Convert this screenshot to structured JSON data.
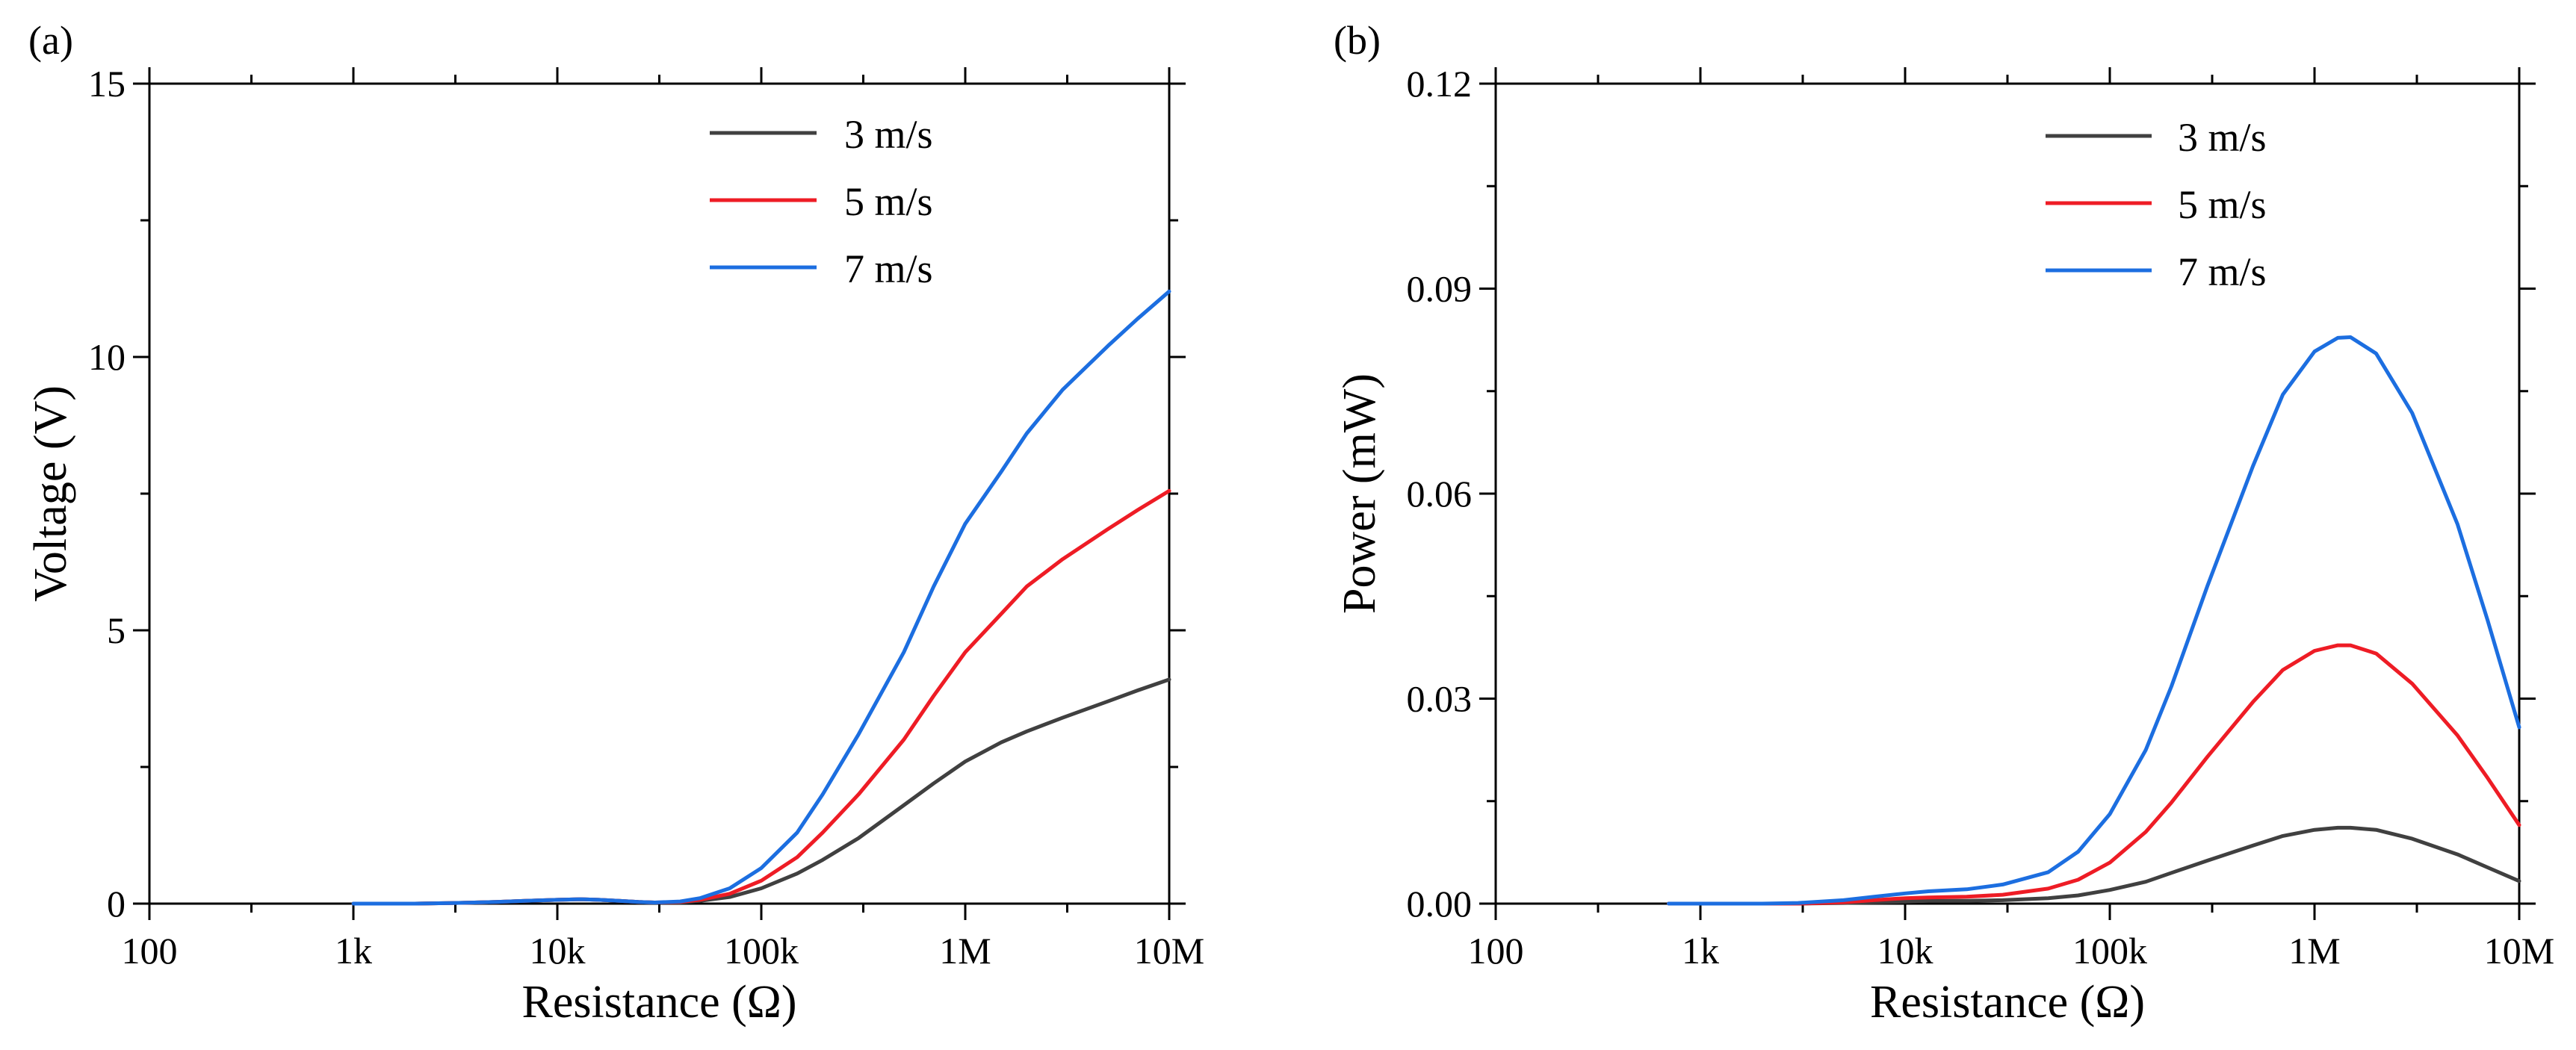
{
  "chart_data": [
    {
      "panel_label": "(a)",
      "type": "line",
      "xlabel": "Resistance (Ω)",
      "ylabel": "Voltage (V)",
      "xscale": "log",
      "xlim": [
        100,
        10000000
      ],
      "ylim": [
        0,
        15
      ],
      "x_ticks": [
        100,
        1000,
        10000,
        100000,
        1000000,
        10000000
      ],
      "x_tick_labels": [
        "100",
        "1k",
        "10k",
        "100k",
        "1M",
        "10M"
      ],
      "y_ticks": [
        0,
        5,
        10,
        15
      ],
      "y_tick_labels": [
        "0",
        "5",
        "10",
        "15"
      ],
      "legend_position": "top-right",
      "x": [
        1000,
        1500,
        2000,
        3000,
        5000,
        7000,
        10000,
        13000,
        16000,
        20000,
        25000,
        30000,
        40000,
        50000,
        70000,
        100000,
        150000,
        200000,
        300000,
        500000,
        700000,
        1000000,
        1500000,
        2000000,
        3000000,
        5000000,
        7000000,
        10000000
      ],
      "series": [
        {
          "name": "3 m/s",
          "color": "#404040",
          "values": [
            0.0,
            0.0,
            0.0,
            0.01,
            0.03,
            0.05,
            0.07,
            0.08,
            0.07,
            0.05,
            0.03,
            0.02,
            0.02,
            0.05,
            0.12,
            0.28,
            0.55,
            0.8,
            1.2,
            1.8,
            2.2,
            2.6,
            2.95,
            3.15,
            3.4,
            3.7,
            3.9,
            4.1
          ]
        },
        {
          "name": "5 m/s",
          "color": "#ee1c25",
          "values": [
            0.0,
            0.0,
            0.0,
            0.01,
            0.03,
            0.05,
            0.07,
            0.08,
            0.07,
            0.05,
            0.03,
            0.02,
            0.03,
            0.07,
            0.18,
            0.42,
            0.85,
            1.3,
            2.0,
            3.0,
            3.8,
            4.6,
            5.3,
            5.8,
            6.3,
            6.85,
            7.2,
            7.55
          ]
        },
        {
          "name": "7 m/s",
          "color": "#1c6ee0",
          "values": [
            0.0,
            0.0,
            0.0,
            0.01,
            0.03,
            0.05,
            0.07,
            0.08,
            0.07,
            0.05,
            0.03,
            0.02,
            0.04,
            0.1,
            0.28,
            0.65,
            1.3,
            2.0,
            3.1,
            4.6,
            5.8,
            6.95,
            7.9,
            8.6,
            9.4,
            10.2,
            10.7,
            11.2
          ]
        }
      ]
    },
    {
      "panel_label": "(b)",
      "type": "line",
      "xlabel": "Resistance (Ω)",
      "ylabel": "Power (mW)",
      "xscale": "log",
      "xlim": [
        100,
        10000000
      ],
      "ylim": [
        0,
        0.12
      ],
      "x_ticks": [
        100,
        1000,
        10000,
        100000,
        1000000,
        10000000
      ],
      "x_tick_labels": [
        "100",
        "1k",
        "10k",
        "100k",
        "1M",
        "10M"
      ],
      "y_ticks": [
        0,
        0.03,
        0.06,
        0.09,
        0.12
      ],
      "y_tick_labels": [
        "0.00",
        "0.03",
        "0.06",
        "0.09",
        "0.12"
      ],
      "legend_position": "top-right",
      "x": [
        700,
        1000,
        2000,
        3000,
        5000,
        7000,
        10000,
        13000,
        20000,
        30000,
        50000,
        70000,
        100000,
        150000,
        200000,
        300000,
        500000,
        700000,
        1000000,
        1300000,
        1500000,
        2000000,
        3000000,
        5000000,
        7000000,
        10000000
      ],
      "series": [
        {
          "name": "3 m/s",
          "color": "#404040",
          "values": [
            0.0,
            0.0,
            0.0,
            0.0,
            0.0001,
            0.0002,
            0.0003,
            0.0004,
            0.0004,
            0.0005,
            0.0008,
            0.0012,
            0.002,
            0.0032,
            0.0045,
            0.0063,
            0.0085,
            0.0099,
            0.0108,
            0.0111,
            0.0111,
            0.0108,
            0.0095,
            0.0072,
            0.0053,
            0.0033
          ]
        },
        {
          "name": "5 m/s",
          "color": "#ee1c25",
          "values": [
            0.0,
            0.0,
            0.0,
            0.0,
            0.0002,
            0.0005,
            0.0008,
            0.0009,
            0.001,
            0.0013,
            0.0022,
            0.0035,
            0.006,
            0.0105,
            0.0148,
            0.0215,
            0.0295,
            0.0342,
            0.037,
            0.0378,
            0.0378,
            0.0366,
            0.0322,
            0.0246,
            0.0184,
            0.0115
          ]
        },
        {
          "name": "7 m/s",
          "color": "#1c6ee0",
          "values": [
            0.0,
            0.0,
            0.0,
            0.0001,
            0.0005,
            0.001,
            0.0015,
            0.0018,
            0.0021,
            0.0028,
            0.0046,
            0.0076,
            0.0131,
            0.0225,
            0.0318,
            0.0465,
            0.064,
            0.0745,
            0.0808,
            0.0828,
            0.0829,
            0.0805,
            0.0718,
            0.0555,
            0.0415,
            0.0258
          ]
        }
      ]
    }
  ]
}
